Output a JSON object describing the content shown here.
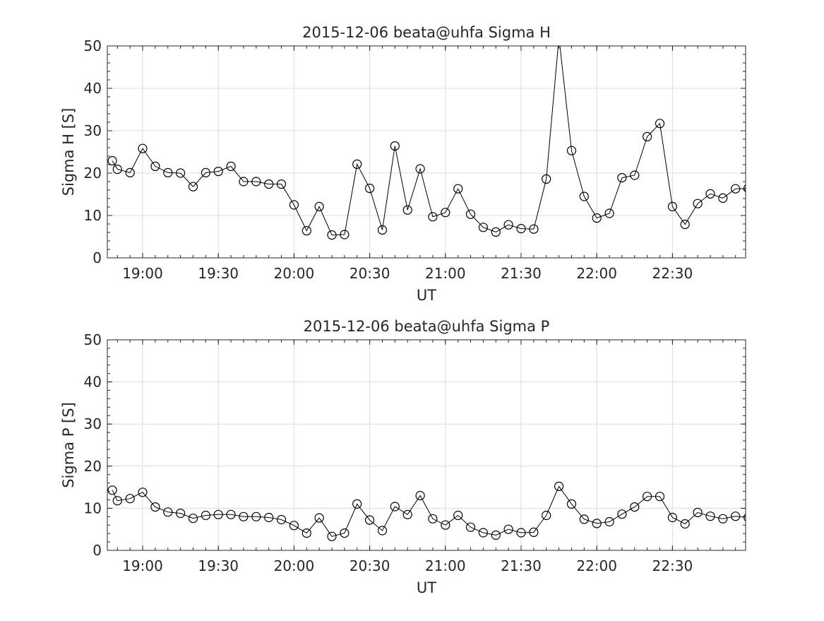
{
  "chart_data": [
    {
      "type": "line",
      "title": "2015-12-06  beata@uhfa Sigma H",
      "xlabel": "UT",
      "ylabel": "Sigma H [S]",
      "ylim": [
        0,
        50
      ],
      "xlim": [
        "18:46",
        "22:59"
      ],
      "grid": true,
      "xticks": [
        "19:00",
        "19:30",
        "20:00",
        "20:30",
        "21:00",
        "21:30",
        "22:00",
        "22:30"
      ],
      "yticks": [
        "0",
        "10",
        "20",
        "30",
        "40",
        "50"
      ],
      "marker": "open-circle",
      "color": "#000000",
      "x": [
        "18:48",
        "18:50",
        "18:55",
        "19:00",
        "19:05",
        "19:10",
        "19:15",
        "19:20",
        "19:25",
        "19:30",
        "19:35",
        "19:40",
        "19:45",
        "19:50",
        "19:55",
        "20:00",
        "20:05",
        "20:10",
        "20:15",
        "20:20",
        "20:25",
        "20:30",
        "20:35",
        "20:40",
        "20:45",
        "20:50",
        "20:55",
        "21:00",
        "21:05",
        "21:10",
        "21:15",
        "21:20",
        "21:25",
        "21:30",
        "21:35",
        "21:40",
        "21:45",
        "21:50",
        "21:55",
        "22:00",
        "22:05",
        "22:10",
        "22:15",
        "22:20",
        "22:25",
        "22:30",
        "22:35",
        "22:40",
        "22:45",
        "22:50",
        "22:55",
        "23:00"
      ],
      "y": [
        22.9,
        20.9,
        20.1,
        25.8,
        21.6,
        20.1,
        20.0,
        16.8,
        20.1,
        20.4,
        21.6,
        18.0,
        18.0,
        17.4,
        17.4,
        12.5,
        6.4,
        12.1,
        5.4,
        5.5,
        22.1,
        16.4,
        6.6,
        26.4,
        11.3,
        21.0,
        9.7,
        10.7,
        16.3,
        10.3,
        7.2,
        6.1,
        7.8,
        6.9,
        6.8,
        18.6,
        52.0,
        25.3,
        14.5,
        9.4,
        10.5,
        18.9,
        19.5,
        28.6,
        31.7,
        12.1,
        7.9,
        12.8,
        15.1,
        14.1,
        16.3,
        16.4
      ]
    },
    {
      "type": "line",
      "title": "2015-12-06  beata@uhfa Sigma P",
      "xlabel": "UT",
      "ylabel": "Sigma P [S]",
      "ylim": [
        0,
        50
      ],
      "xlim": [
        "18:46",
        "22:59"
      ],
      "grid": true,
      "xticks": [
        "19:00",
        "19:30",
        "20:00",
        "20:30",
        "21:00",
        "21:30",
        "22:00",
        "22:30"
      ],
      "yticks": [
        "0",
        "10",
        "20",
        "30",
        "40",
        "50"
      ],
      "marker": "open-circle",
      "color": "#000000",
      "x": [
        "18:48",
        "18:50",
        "18:55",
        "19:00",
        "19:05",
        "19:10",
        "19:15",
        "19:20",
        "19:25",
        "19:30",
        "19:35",
        "19:40",
        "19:45",
        "19:50",
        "19:55",
        "20:00",
        "20:05",
        "20:10",
        "20:15",
        "20:20",
        "20:25",
        "20:30",
        "20:35",
        "20:40",
        "20:45",
        "20:50",
        "20:55",
        "21:00",
        "21:05",
        "21:10",
        "21:15",
        "21:20",
        "21:25",
        "21:30",
        "21:35",
        "21:40",
        "21:45",
        "21:50",
        "21:55",
        "22:00",
        "22:05",
        "22:10",
        "22:15",
        "22:20",
        "22:25",
        "22:30",
        "22:35",
        "22:40",
        "22:45",
        "22:50",
        "22:55",
        "23:00"
      ],
      "y": [
        14.3,
        11.8,
        12.3,
        13.8,
        10.3,
        9.1,
        8.8,
        7.6,
        8.3,
        8.5,
        8.5,
        8.0,
        8.0,
        7.8,
        7.3,
        5.9,
        4.1,
        7.7,
        3.3,
        4.1,
        11.0,
        7.2,
        4.7,
        10.4,
        8.5,
        13.0,
        7.5,
        6.0,
        8.3,
        5.5,
        4.2,
        3.6,
        5.0,
        4.2,
        4.3,
        8.3,
        15.2,
        11.0,
        7.4,
        6.4,
        6.8,
        8.6,
        10.3,
        12.8,
        12.8,
        7.8,
        6.3,
        9.0,
        8.1,
        7.5,
        8.1,
        7.8
      ]
    }
  ]
}
